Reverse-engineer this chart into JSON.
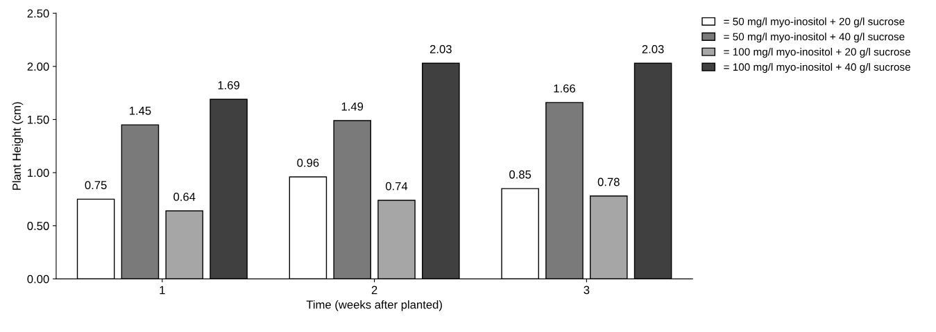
{
  "chart_data": {
    "type": "bar",
    "xlabel": "Time (weeks after planted)",
    "ylabel": "Plant Height (cm)",
    "categories": [
      "1",
      "2",
      "3"
    ],
    "series": [
      {
        "name": "= 50 mg/l myo-inositol + 20 g/l sucrose",
        "color": "#ffffff",
        "values": [
          0.75,
          0.96,
          0.85
        ]
      },
      {
        "name": "= 50 mg/l myo-inositol + 40 g/l sucrose",
        "color": "#7a7a7a",
        "values": [
          1.45,
          1.49,
          1.66
        ]
      },
      {
        "name": "= 100 mg/l myo-inositol + 20 g/l sucrose",
        "color": "#a6a6a6",
        "values": [
          0.64,
          0.74,
          0.78
        ]
      },
      {
        "name": "= 100 mg/l myo-inositol + 40 g/l sucrose",
        "color": "#404040",
        "values": [
          1.69,
          2.03,
          2.03
        ]
      }
    ],
    "ylim": [
      0,
      2.5
    ],
    "yticks": [
      {
        "value": 0,
        "label": "0.00"
      },
      {
        "value": 0.5,
        "label": "0.50"
      },
      {
        "value": 1,
        "label": "1.00"
      },
      {
        "value": 1.5,
        "label": "1.50"
      },
      {
        "value": 2,
        "label": "2.00"
      },
      {
        "value": 2.5,
        "label": "2.50"
      }
    ],
    "data_labels": true,
    "grid": false,
    "legend": "top right"
  }
}
